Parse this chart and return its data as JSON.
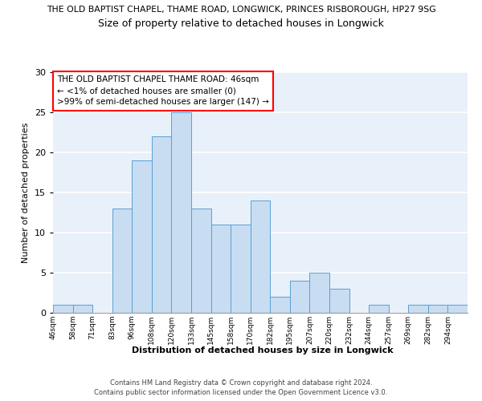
{
  "title_top": "THE OLD BAPTIST CHAPEL, THAME ROAD, LONGWICK, PRINCES RISBOROUGH, HP27 9SG",
  "title_main": "Size of property relative to detached houses in Longwick",
  "xlabel": "Distribution of detached houses by size in Longwick",
  "ylabel": "Number of detached properties",
  "bin_labels": [
    "46sqm",
    "58sqm",
    "71sqm",
    "83sqm",
    "96sqm",
    "108sqm",
    "120sqm",
    "133sqm",
    "145sqm",
    "158sqm",
    "170sqm",
    "182sqm",
    "195sqm",
    "207sqm",
    "220sqm",
    "232sqm",
    "244sqm",
    "257sqm",
    "269sqm",
    "282sqm",
    "294sqm"
  ],
  "bar_heights": [
    1,
    1,
    0,
    13,
    19,
    22,
    25,
    13,
    11,
    11,
    14,
    2,
    4,
    5,
    3,
    0,
    1,
    0,
    1,
    1,
    1
  ],
  "bar_color": "#c8ddf2",
  "bar_edge_color": "#5a9fd4",
  "ylim": [
    0,
    30
  ],
  "yticks": [
    0,
    5,
    10,
    15,
    20,
    25,
    30
  ],
  "annotation_box_text": "THE OLD BAPTIST CHAPEL THAME ROAD: 46sqm\n← <1% of detached houses are smaller (0)\n>99% of semi-detached houses are larger (147) →",
  "footer_line1": "Contains HM Land Registry data © Crown copyright and database right 2024.",
  "footer_line2": "Contains public sector information licensed under the Open Government Licence v3.0.",
  "background_color": "#ffffff",
  "plot_bg_color": "#e8f0fa",
  "grid_color": "#ffffff"
}
